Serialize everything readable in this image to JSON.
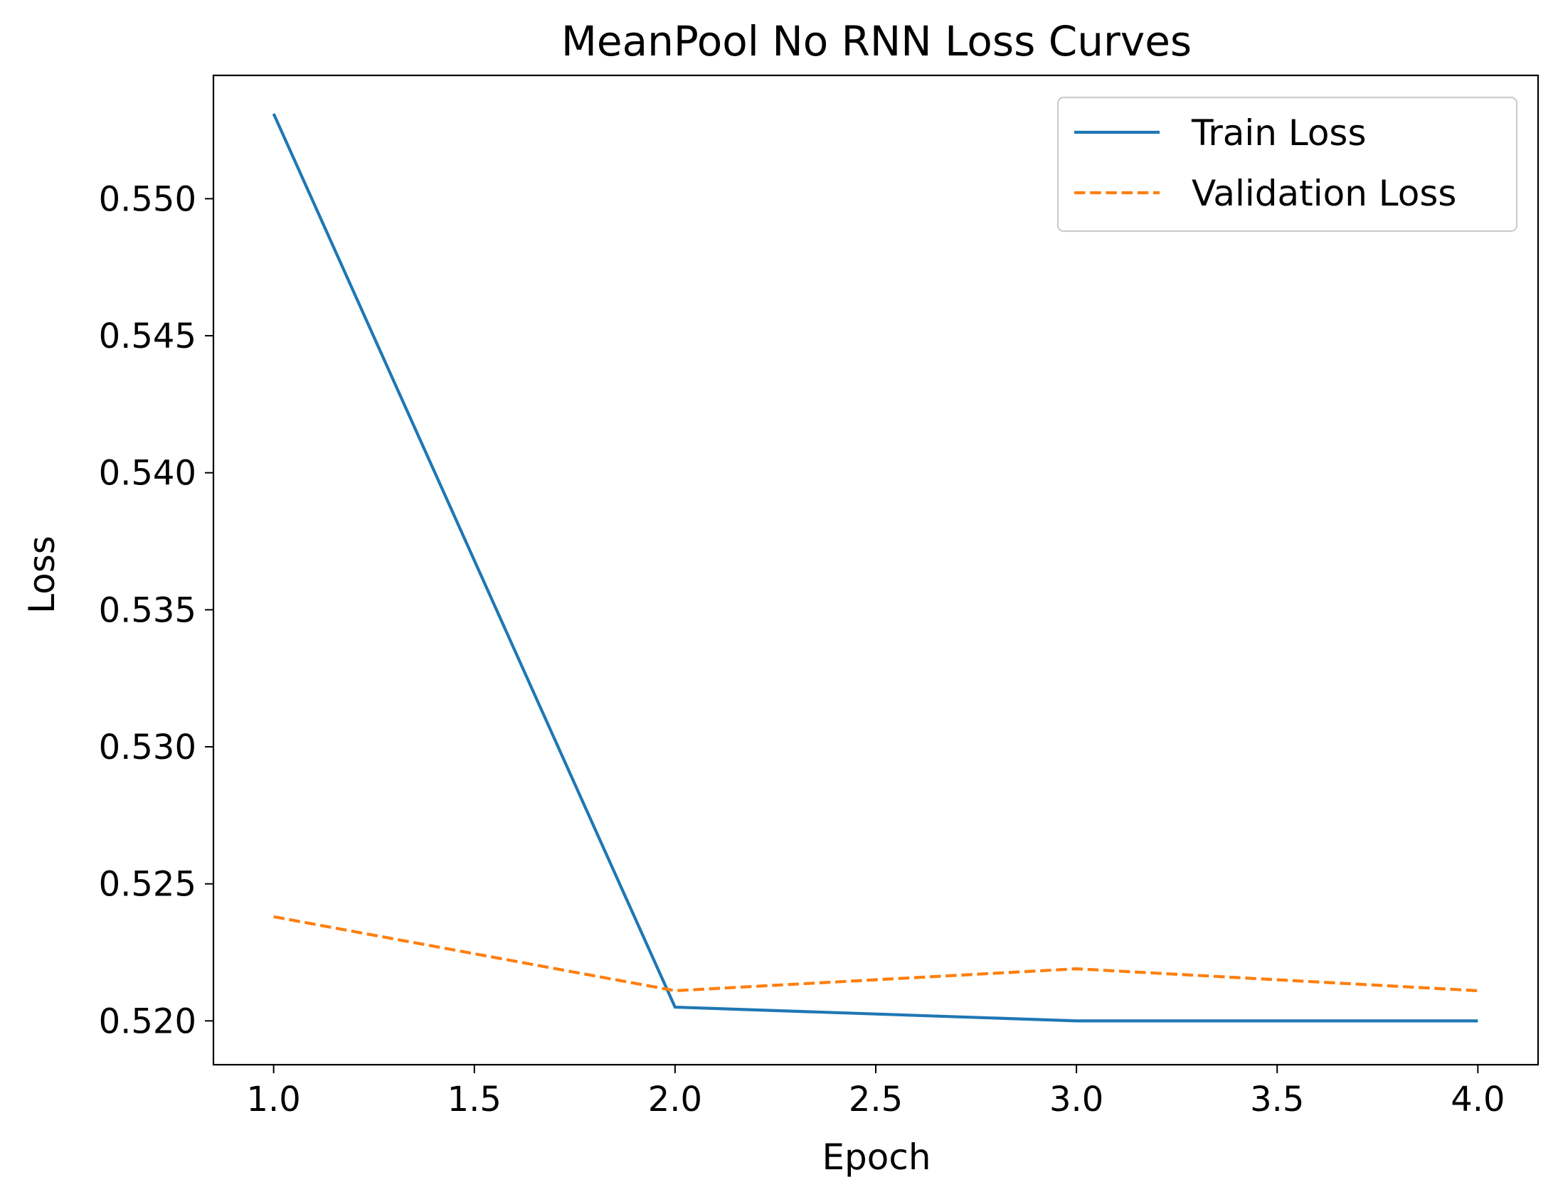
{
  "chart_data": {
    "type": "line",
    "title": "MeanPool No RNN Loss Curves",
    "xlabel": "Epoch",
    "ylabel": "Loss",
    "xlim": [
      0.85,
      4.15
    ],
    "ylim": [
      0.5184,
      0.5545
    ],
    "xticks": [
      "1.0",
      "1.5",
      "2.0",
      "2.5",
      "3.0",
      "3.5",
      "4.0"
    ],
    "yticks": [
      "0.520",
      "0.525",
      "0.530",
      "0.535",
      "0.540",
      "0.545",
      "0.550"
    ],
    "grid": false,
    "legend_position": "top-right",
    "x": [
      1,
      2,
      3,
      4
    ],
    "series": [
      {
        "name": "Train Loss",
        "values": [
          0.5531,
          0.5205,
          0.52,
          0.52
        ],
        "color": "#1f77b4",
        "style": "solid"
      },
      {
        "name": "Validation Loss",
        "values": [
          0.5238,
          0.5211,
          0.5219,
          0.5211
        ],
        "color": "#ff7f0e",
        "style": "dashed"
      }
    ]
  }
}
